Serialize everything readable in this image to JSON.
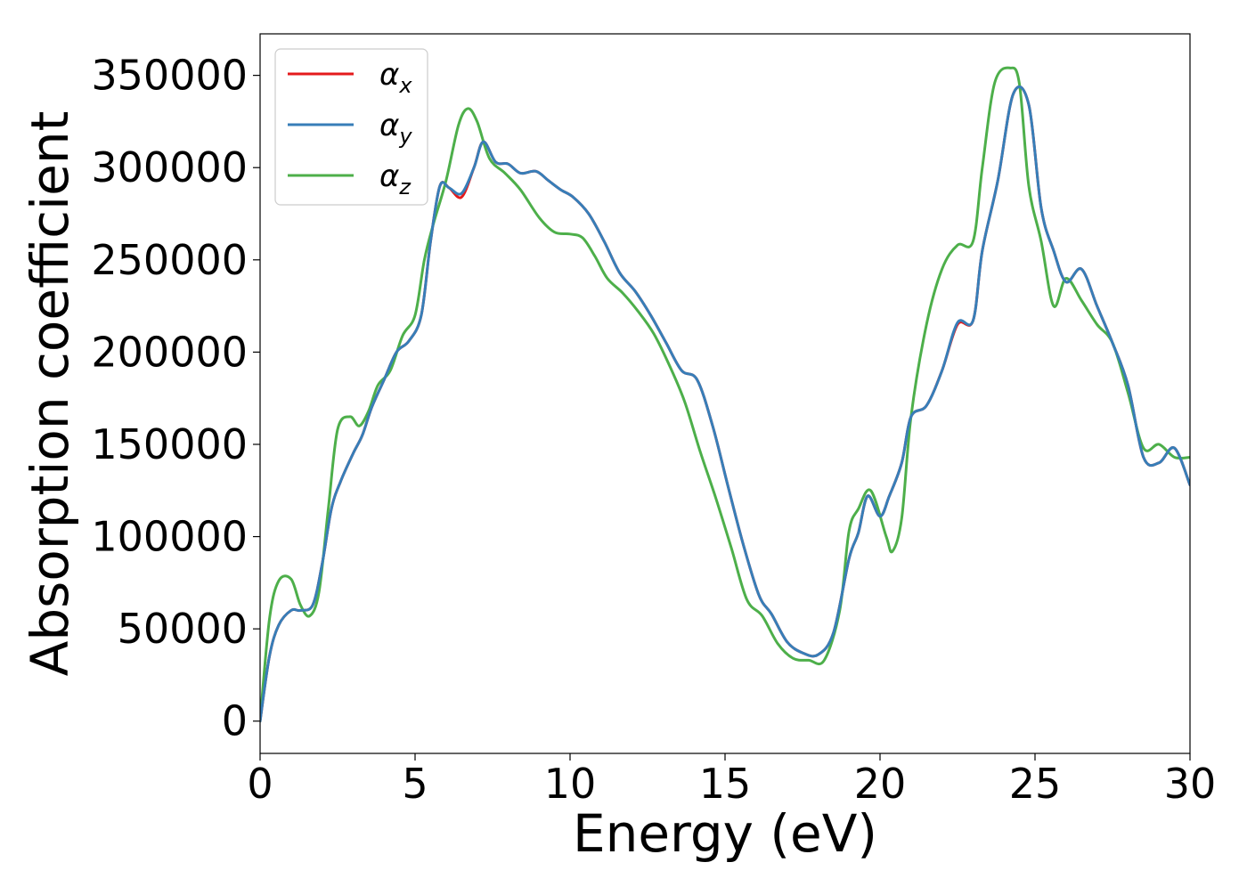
{
  "chart_data": {
    "type": "line",
    "title": "",
    "xlabel": "Energy (eV)",
    "ylabel": "Absorption coefficient",
    "xlim": [
      0,
      30
    ],
    "ylim": [
      -17500,
      372500
    ],
    "xticks": [
      0,
      5,
      10,
      15,
      20,
      25,
      30
    ],
    "xtick_labels": [
      "0",
      "5",
      "10",
      "15",
      "20",
      "25",
      "30"
    ],
    "yticks": [
      0,
      50000,
      100000,
      150000,
      200000,
      250000,
      300000,
      350000
    ],
    "ytick_labels": [
      "0",
      "50000",
      "100000",
      "150000",
      "200000",
      "250000",
      "300000",
      "350000"
    ],
    "grid": false,
    "legend": {
      "position": "top-left",
      "entries": [
        {
          "base": "α",
          "sub": "x"
        },
        {
          "base": "α",
          "sub": "y"
        },
        {
          "base": "α",
          "sub": "z"
        }
      ]
    },
    "series": [
      {
        "name": "αx",
        "color": "#e41a1c",
        "x": [
          0,
          0.3,
          0.6,
          1.0,
          1.3,
          1.7,
          2.0,
          2.3,
          2.6,
          3.0,
          3.3,
          3.6,
          4.0,
          4.4,
          4.8,
          5.2,
          5.5,
          5.8,
          6.1,
          6.5,
          6.9,
          7.2,
          7.6,
          8.0,
          8.4,
          8.9,
          9.3,
          9.7,
          10.1,
          10.6,
          11.1,
          11.6,
          12.1,
          12.6,
          13.1,
          13.6,
          14.1,
          14.6,
          15.1,
          15.6,
          16.1,
          16.5,
          17.0,
          17.5,
          18.0,
          18.5,
          19.0,
          19.3,
          19.6,
          20.0,
          20.3,
          20.7,
          21.0,
          21.5,
          22.0,
          22.5,
          23.0,
          23.3,
          23.8,
          24.3,
          24.8,
          25.2,
          25.6,
          26.0,
          26.5,
          27.0,
          27.5,
          28.0,
          28.5,
          29.0,
          29.5,
          30.0
        ],
        "y": [
          0,
          35000,
          52000,
          60000,
          60000,
          63000,
          85000,
          115000,
          130000,
          145000,
          155000,
          170000,
          185000,
          200000,
          206000,
          220000,
          260000,
          290000,
          289000,
          284000,
          300000,
          314000,
          303000,
          302000,
          297000,
          298000,
          293000,
          288000,
          284000,
          275000,
          260000,
          243000,
          233000,
          220000,
          205000,
          190000,
          185000,
          160000,
          127000,
          95000,
          68000,
          58000,
          43000,
          37000,
          36000,
          48000,
          88000,
          102000,
          122000,
          111000,
          122000,
          140000,
          165000,
          171000,
          190000,
          215000,
          217000,
          255000,
          293000,
          340000,
          334000,
          278000,
          255000,
          238000,
          245000,
          225000,
          205000,
          182000,
          143000,
          140000,
          148000,
          128000
        ]
      },
      {
        "name": "αy",
        "color": "#377eb8",
        "x": [
          0,
          0.3,
          0.6,
          1.0,
          1.3,
          1.7,
          2.0,
          2.3,
          2.6,
          3.0,
          3.3,
          3.6,
          4.0,
          4.4,
          4.8,
          5.2,
          5.5,
          5.8,
          6.1,
          6.5,
          6.9,
          7.2,
          7.6,
          8.0,
          8.4,
          8.9,
          9.3,
          9.7,
          10.1,
          10.6,
          11.1,
          11.6,
          12.1,
          12.6,
          13.1,
          13.6,
          14.1,
          14.6,
          15.1,
          15.6,
          16.1,
          16.5,
          17.0,
          17.5,
          18.0,
          18.5,
          19.0,
          19.3,
          19.6,
          20.0,
          20.3,
          20.7,
          21.0,
          21.5,
          22.0,
          22.5,
          23.0,
          23.3,
          23.8,
          24.3,
          24.8,
          25.2,
          25.6,
          26.0,
          26.5,
          27.0,
          27.5,
          28.0,
          28.5,
          29.0,
          29.5,
          30.0
        ],
        "y": [
          0,
          35000,
          52000,
          60000,
          60000,
          63000,
          85000,
          115000,
          130000,
          145000,
          155000,
          170000,
          185000,
          200000,
          206000,
          220000,
          260000,
          290000,
          289000,
          286000,
          300000,
          314000,
          303000,
          302000,
          297000,
          298000,
          293000,
          288000,
          284000,
          275000,
          260000,
          243000,
          233000,
          220000,
          205000,
          190000,
          185000,
          160000,
          127000,
          95000,
          68000,
          58000,
          43000,
          37000,
          36000,
          48000,
          88000,
          102000,
          122000,
          111000,
          122000,
          140000,
          165000,
          171000,
          190000,
          216000,
          217000,
          255000,
          293000,
          340000,
          334000,
          278000,
          255000,
          238000,
          245000,
          225000,
          205000,
          182000,
          143000,
          140000,
          148000,
          128000
        ]
      },
      {
        "name": "αz",
        "color": "#4daf4a",
        "x": [
          0,
          0.3,
          0.6,
          1.0,
          1.3,
          1.6,
          1.9,
          2.2,
          2.5,
          2.9,
          3.2,
          3.5,
          3.8,
          4.2,
          4.6,
          5.0,
          5.3,
          5.6,
          6.0,
          6.4,
          6.7,
          7.0,
          7.4,
          7.9,
          8.4,
          9.0,
          9.5,
          10.0,
          10.4,
          10.8,
          11.2,
          11.7,
          12.2,
          12.7,
          13.2,
          13.7,
          14.2,
          14.7,
          15.2,
          15.7,
          16.2,
          16.7,
          17.2,
          17.7,
          18.2,
          18.7,
          19.0,
          19.3,
          19.7,
          20.2,
          20.4,
          20.7,
          21.0,
          21.5,
          22.0,
          22.5,
          23.0,
          23.3,
          23.7,
          24.2,
          24.5,
          24.8,
          25.2,
          25.6,
          26.0,
          26.5,
          27.0,
          27.5,
          28.0,
          28.5,
          29.0,
          29.5,
          30.0
        ],
        "y": [
          0,
          55000,
          76000,
          77000,
          63000,
          57000,
          70000,
          115000,
          158000,
          165000,
          160000,
          168000,
          182000,
          190000,
          209000,
          220000,
          250000,
          270000,
          293000,
          323000,
          332000,
          325000,
          305000,
          297000,
          288000,
          273000,
          265000,
          264000,
          262000,
          252000,
          240000,
          232000,
          222000,
          210000,
          193000,
          173000,
          146000,
          121000,
          94000,
          66000,
          57000,
          42000,
          34000,
          33000,
          33000,
          60000,
          103000,
          115000,
          125000,
          100000,
          92000,
          110000,
          165000,
          215000,
          245000,
          258000,
          260000,
          300000,
          346000,
          354000,
          345000,
          290000,
          260000,
          225000,
          240000,
          228000,
          215000,
          205000,
          178000,
          148000,
          150000,
          143000,
          143000
        ]
      }
    ]
  }
}
